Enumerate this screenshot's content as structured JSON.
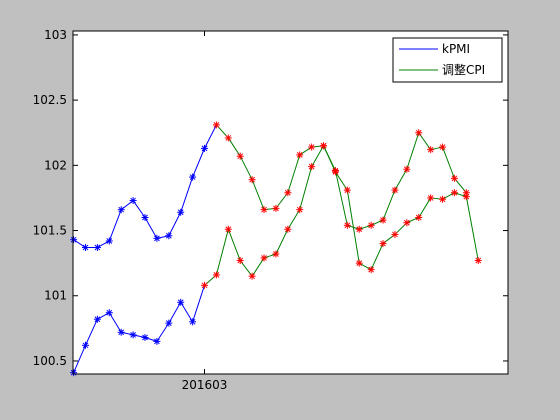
{
  "chart_data": {
    "type": "line",
    "title": "",
    "xlabel": "",
    "ylabel": "",
    "xlim": [
      1,
      35
    ],
    "ylim": [
      100.4,
      103.03
    ],
    "yticks": [
      100.5,
      101,
      101.5,
      102,
      102.5,
      103
    ],
    "ytick_labels": [
      "100.5",
      "101",
      "101.5",
      "102",
      "102.5",
      "103"
    ],
    "xticks": [
      {
        "x": 12,
        "label": "201603"
      }
    ],
    "grid": false,
    "legend_position": "top-right",
    "colors": {
      "kpmi": "#0000ff",
      "cpi": "#008000",
      "marker_blue": "#0000ff",
      "marker_red": "#ff0000",
      "figure_bg": "#c0c0c0",
      "axes_bg": "#ffffff"
    },
    "series": [
      {
        "name": "kPMI",
        "key": "kpmi",
        "x": [
          1,
          2,
          3,
          4,
          5,
          6,
          7,
          8,
          9,
          10,
          11,
          12,
          13,
          14,
          15,
          16,
          17,
          18,
          19,
          20,
          21,
          22,
          23,
          24,
          25,
          26,
          27,
          28,
          29,
          30,
          31,
          32,
          33,
          34
        ],
        "values": [
          100.41,
          100.62,
          100.82,
          100.87,
          100.72,
          100.7,
          100.68,
          100.65,
          100.79,
          100.95,
          100.8,
          101.08,
          101.16,
          101.51,
          101.27,
          101.15,
          101.29,
          101.32,
          101.51,
          101.66,
          101.99,
          102.15,
          101.96,
          101.54,
          101.51,
          101.54,
          101.58,
          101.81,
          101.97,
          102.25,
          102.12,
          102.14,
          101.9,
          101.79
        ]
      },
      {
        "name": "调整CPI",
        "key": "cpi",
        "x": [
          1,
          2,
          3,
          4,
          5,
          6,
          7,
          8,
          9,
          10,
          11,
          12,
          13,
          14,
          15,
          16,
          17,
          18,
          19,
          20,
          21,
          22,
          23,
          24,
          25,
          26,
          27,
          28,
          29,
          30,
          31,
          32,
          33,
          34,
          35
        ],
        "values": [
          101.43,
          101.37,
          101.37,
          101.42,
          101.66,
          101.73,
          101.6,
          101.44,
          101.46,
          101.64,
          101.91,
          102.13,
          102.31,
          102.21,
          102.07,
          101.89,
          101.66,
          101.67,
          101.79,
          102.08,
          102.14,
          102.15,
          101.95,
          101.81,
          101.25,
          101.2,
          101.4,
          101.47,
          101.56,
          101.6,
          101.75,
          101.74,
          101.79,
          101.76,
          101.27
        ]
      }
    ],
    "markers": {
      "symbol": "*",
      "red_on": {
        "kpmi": [
          12,
          13,
          14,
          15,
          16,
          17,
          18,
          19,
          20,
          21,
          22,
          23,
          24,
          25,
          26,
          27,
          28,
          29,
          30,
          31,
          32,
          33,
          34
        ],
        "cpi": [
          13,
          14,
          15,
          16,
          17,
          18,
          19,
          20,
          21,
          22,
          23,
          24,
          25,
          26,
          27,
          28,
          29,
          30,
          31,
          32,
          33,
          34,
          35
        ]
      }
    }
  }
}
